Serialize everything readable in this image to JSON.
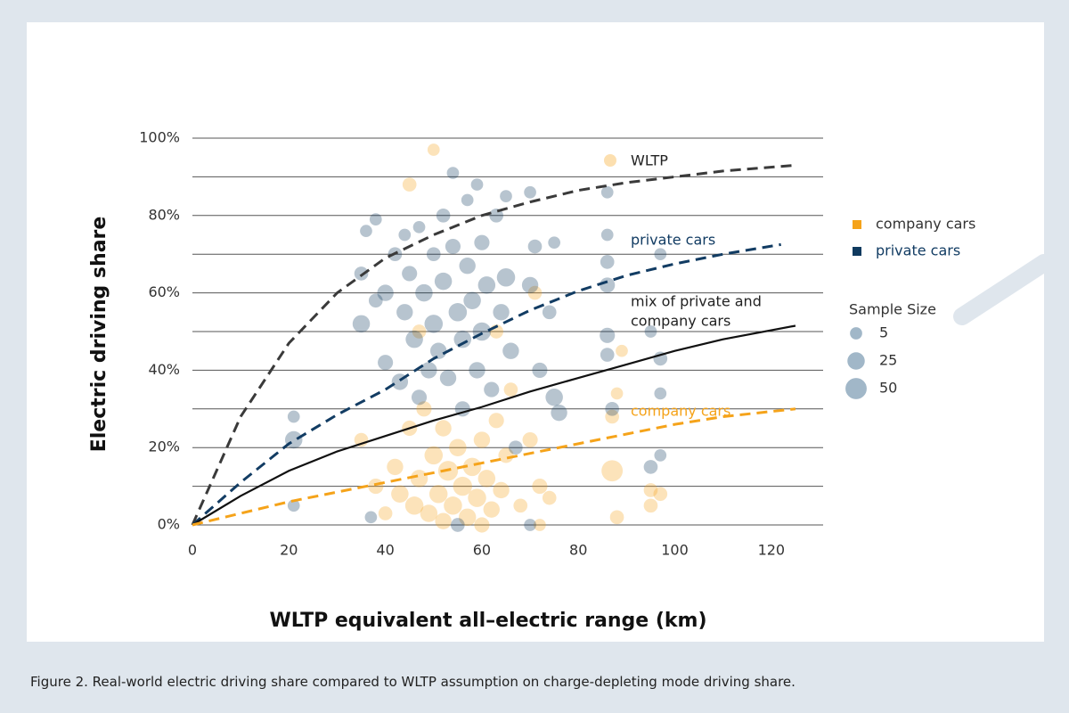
{
  "chart_data": {
    "type": "scatter",
    "y_label": "Electric driving share",
    "x_label": "WLTP equivalent all–electric range (km)",
    "xlim": [
      0,
      130
    ],
    "xticks": [
      0,
      20,
      40,
      60,
      80,
      100,
      120
    ],
    "ylim": [
      0,
      100
    ],
    "yticks": [
      {
        "value": 0,
        "label": "0%"
      },
      {
        "value": 20,
        "label": "20%"
      },
      {
        "value": 40,
        "label": "40%"
      },
      {
        "value": 60,
        "label": "60%"
      },
      {
        "value": 80,
        "label": "80%"
      },
      {
        "value": 100,
        "label": "100%"
      }
    ],
    "minor_grid": [
      10,
      30,
      50,
      70,
      90
    ],
    "grid": true,
    "legend": "right",
    "series": [
      {
        "name": "company cars",
        "color": "#f5a31a",
        "x": [
          45,
          50,
          35,
          38,
          40,
          42,
          43,
          45,
          46,
          47,
          48,
          49,
          50,
          51,
          52,
          52,
          53,
          54,
          55,
          56,
          57,
          58,
          59,
          60,
          60,
          61,
          62,
          63,
          64,
          65,
          66,
          68,
          70,
          71,
          72,
          72,
          74,
          87,
          87,
          88,
          88,
          89,
          95,
          95,
          97,
          63,
          47
        ],
        "values": [
          88,
          97,
          22,
          10,
          3,
          15,
          8,
          25,
          5,
          12,
          30,
          3,
          18,
          8,
          1,
          25,
          14,
          5,
          20,
          10,
          2,
          15,
          7,
          22,
          0,
          12,
          4,
          27,
          9,
          18,
          35,
          5,
          22,
          60,
          10,
          0,
          7,
          14,
          28,
          34,
          2,
          45,
          9,
          5,
          8,
          50,
          50
        ],
        "sizes": [
          10,
          5,
          10,
          15,
          10,
          20,
          25,
          15,
          30,
          25,
          15,
          25,
          30,
          30,
          20,
          20,
          40,
          30,
          25,
          35,
          25,
          30,
          30,
          20,
          15,
          25,
          20,
          15,
          20,
          15,
          10,
          10,
          15,
          10,
          15,
          5,
          10,
          50,
          10,
          5,
          10,
          5,
          10,
          10,
          10,
          10,
          10
        ]
      },
      {
        "name": "private cars",
        "color": "#0f3a5f",
        "x": [
          21,
          21,
          21,
          35,
          35,
          36,
          38,
          38,
          40,
          40,
          42,
          43,
          44,
          44,
          45,
          46,
          47,
          47,
          48,
          49,
          50,
          50,
          51,
          52,
          52,
          53,
          54,
          54,
          55,
          56,
          56,
          57,
          57,
          58,
          59,
          59,
          60,
          60,
          61,
          62,
          63,
          64,
          65,
          65,
          66,
          67,
          70,
          70,
          71,
          72,
          74,
          75,
          75,
          76,
          86,
          86,
          86,
          86,
          86,
          86,
          87,
          95,
          95,
          97,
          97,
          97,
          97,
          70,
          55,
          37
        ],
        "values": [
          28,
          22,
          5,
          65,
          52,
          76,
          79,
          58,
          42,
          60,
          70,
          37,
          75,
          55,
          65,
          48,
          33,
          77,
          60,
          40,
          70,
          52,
          45,
          80,
          63,
          38,
          91,
          72,
          55,
          48,
          30,
          84,
          67,
          58,
          88,
          40,
          73,
          50,
          62,
          35,
          80,
          55,
          85,
          64,
          45,
          20,
          86,
          62,
          72,
          40,
          55,
          33,
          73,
          29,
          86,
          75,
          68,
          62,
          49,
          44,
          30,
          50,
          15,
          70,
          43,
          34,
          18,
          0,
          0,
          2
        ],
        "sizes": [
          5,
          25,
          5,
          10,
          25,
          5,
          5,
          10,
          15,
          20,
          10,
          20,
          5,
          20,
          15,
          25,
          15,
          5,
          25,
          20,
          10,
          30,
          20,
          10,
          25,
          20,
          5,
          15,
          30,
          25,
          15,
          5,
          20,
          25,
          5,
          20,
          15,
          30,
          25,
          15,
          10,
          20,
          5,
          30,
          20,
          10,
          5,
          20,
          10,
          15,
          10,
          25,
          5,
          20,
          5,
          5,
          10,
          15,
          15,
          10,
          10,
          5,
          10,
          5,
          10,
          5,
          5,
          5,
          10,
          5
        ]
      }
    ],
    "curves": [
      {
        "label": [
          "WLTP"
        ],
        "color": "#3a3a3a",
        "dash": true,
        "x": [
          0,
          10,
          20,
          30,
          40,
          50,
          60,
          70,
          80,
          90,
          100,
          110,
          125
        ],
        "values": [
          0,
          28,
          47,
          60,
          69,
          75,
          80,
          83.5,
          86.5,
          88.5,
          90,
          91.5,
          93
        ]
      },
      {
        "label": [
          "private cars"
        ],
        "color": "#123c63",
        "dash": true,
        "x": [
          0,
          10,
          20,
          30,
          40,
          50,
          60,
          70,
          80,
          90,
          100,
          110,
          122
        ],
        "values": [
          0,
          11,
          21,
          28.5,
          35,
          43,
          49.5,
          55.5,
          60.5,
          64.5,
          67.5,
          70,
          72.5
        ]
      },
      {
        "label": [
          "mix of private and",
          "company cars"
        ],
        "color": "#111111",
        "dash": false,
        "x": [
          0,
          10,
          20,
          30,
          40,
          50,
          60,
          70,
          80,
          90,
          100,
          110,
          125
        ],
        "values": [
          0,
          7.5,
          14,
          19,
          23,
          27,
          30.5,
          34.5,
          38,
          41.5,
          45,
          48,
          51.5
        ]
      },
      {
        "label": [
          "company cars"
        ],
        "color": "#f5a31a",
        "dash": true,
        "x": [
          0,
          10,
          20,
          30,
          40,
          50,
          60,
          70,
          80,
          90,
          100,
          110,
          125
        ],
        "values": [
          0,
          3,
          6,
          8.5,
          11,
          13.5,
          16,
          18.5,
          21,
          23.5,
          26,
          28,
          30
        ]
      }
    ],
    "size_legend": {
      "title": "Sample Size",
      "values": [
        5,
        25,
        50
      ]
    }
  },
  "caption": "Figure 2. Real-world electric driving share compared to WLTP assumption on charge-depleting mode driving share."
}
